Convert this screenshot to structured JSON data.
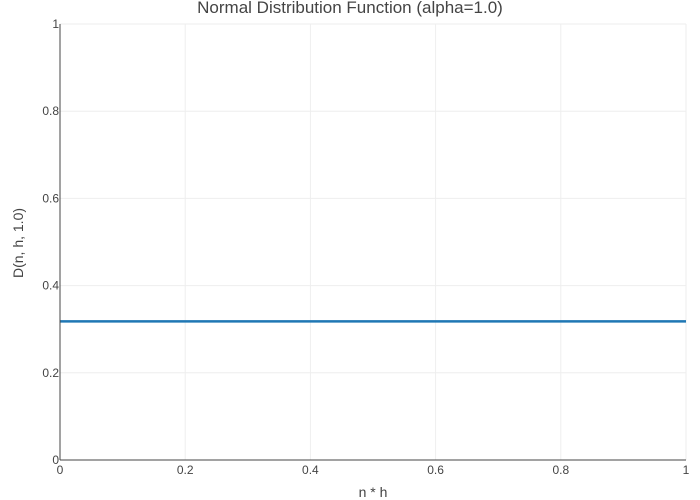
{
  "chart_data": {
    "type": "line",
    "title": "Normal Distribution Function (alpha=1.0)",
    "xlabel": "n * h",
    "ylabel": "D(n, h, 1.0)",
    "xlim": [
      0,
      1
    ],
    "ylim": [
      0,
      1
    ],
    "x_ticks": [
      0,
      0.2,
      0.4,
      0.6,
      0.8,
      1
    ],
    "x_tick_labels": [
      "0",
      "0.2",
      "0.4",
      "0.6",
      "0.8",
      "1"
    ],
    "y_ticks": [
      0,
      0.2,
      0.4,
      0.6,
      0.8,
      1
    ],
    "y_tick_labels": [
      "0",
      "0.2",
      "0.4",
      "0.6",
      "0.8",
      "1"
    ],
    "grid": true,
    "legend": "none",
    "series": [
      {
        "color": "#1f77b4",
        "x": [
          0,
          0.2,
          0.4,
          0.6,
          0.8,
          1
        ],
        "y": [
          0.318,
          0.318,
          0.318,
          0.318,
          0.318,
          0.318
        ]
      }
    ]
  }
}
